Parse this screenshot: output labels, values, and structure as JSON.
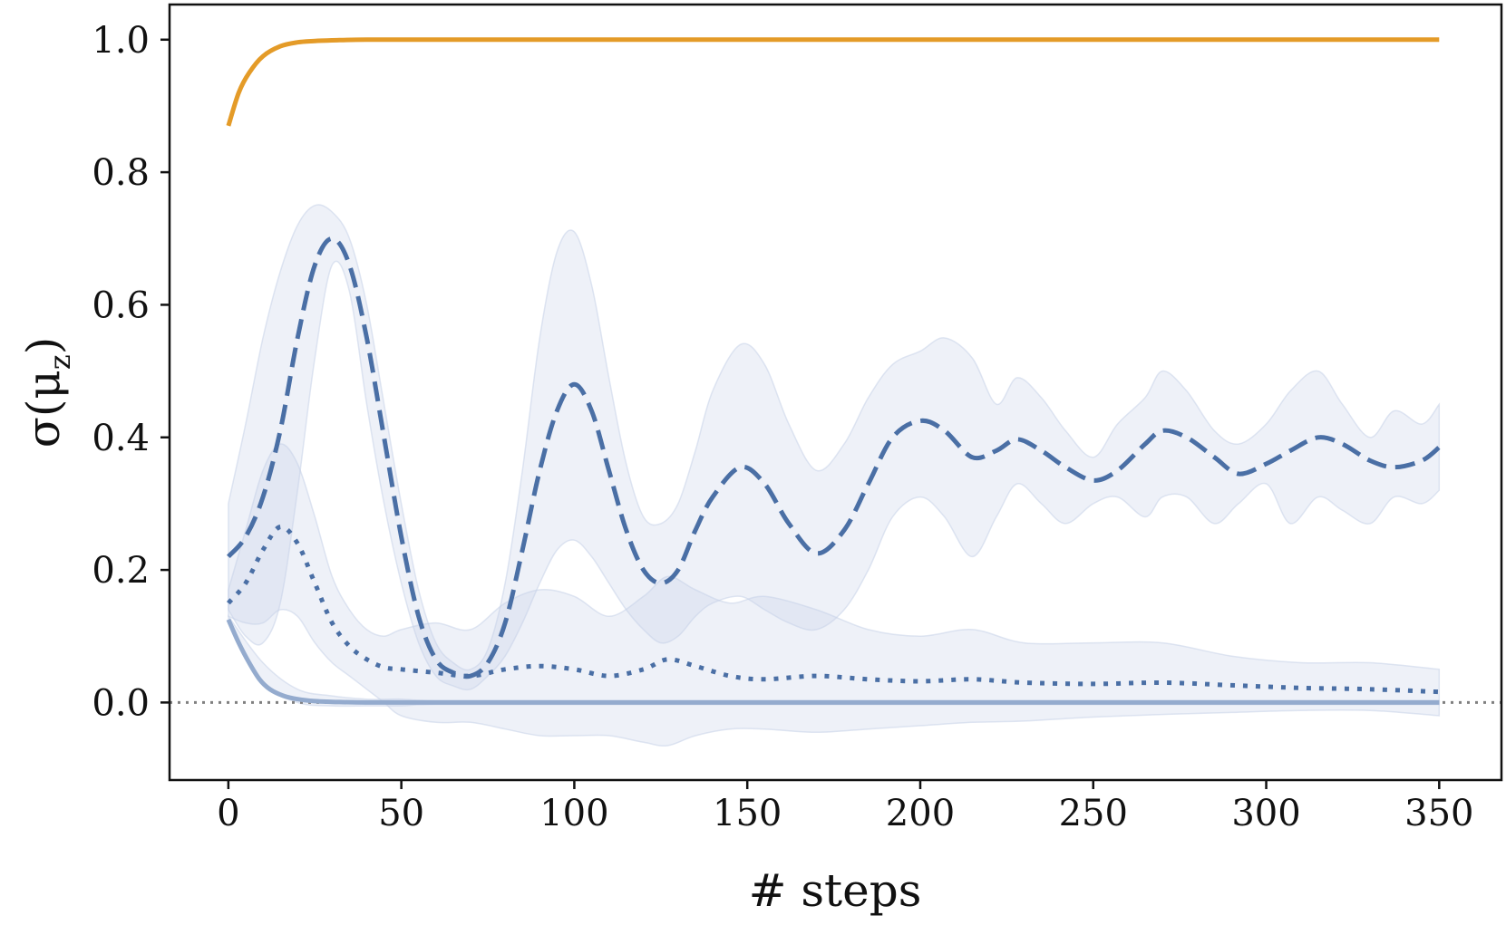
{
  "chart_data": {
    "type": "line",
    "title": "",
    "xlabel": "# steps",
    "ylabel": "σ(μ_z)",
    "ylabel_main": "σ(μ",
    "ylabel_sub": "z",
    "ylabel_close": ")",
    "xlim": [
      -17,
      368
    ],
    "ylim": [
      -0.117,
      1.053
    ],
    "xticks": [
      0,
      50,
      100,
      150,
      200,
      250,
      300,
      350
    ],
    "yticks": [
      0.0,
      0.2,
      0.4,
      0.6,
      0.8,
      1.0
    ],
    "xtick_labels": [
      "0",
      "50",
      "100",
      "150",
      "200",
      "250",
      "300",
      "350"
    ],
    "ytick_labels": [
      "0.0",
      "0.2",
      "0.4",
      "0.6",
      "0.8",
      "1.0"
    ],
    "grid": false,
    "reference_line": {
      "y": 0.0,
      "style": "dotted",
      "color": "#808080"
    },
    "colors": {
      "orange": "#E49B28",
      "blue": "#4A6FA5",
      "blue_light": "#94ABCE",
      "band": "#C6D2E7"
    },
    "series": [
      {
        "style": "solid",
        "color": "#E49B28",
        "x": [
          0,
          3,
          6,
          10,
          15,
          20,
          25,
          30,
          40,
          60,
          100,
          200,
          350
        ],
        "y": [
          0.87,
          0.92,
          0.95,
          0.975,
          0.99,
          0.996,
          0.998,
          0.999,
          1.0,
          1.0,
          1.0,
          1.0,
          1.0
        ]
      },
      {
        "style": "dashed",
        "color": "#4A6FA5",
        "x": [
          0,
          5,
          10,
          15,
          20,
          25,
          30,
          35,
          40,
          45,
          50,
          55,
          60,
          65,
          70,
          75,
          80,
          85,
          90,
          95,
          100,
          105,
          110,
          115,
          120,
          125,
          130,
          135,
          140,
          148,
          155,
          162,
          170,
          178,
          185,
          192,
          200,
          207,
          215,
          222,
          228,
          235,
          242,
          250,
          257,
          265,
          270,
          277,
          285,
          292,
          300,
          307,
          315,
          322,
          330,
          337,
          345,
          350
        ],
        "y": [
          0.22,
          0.25,
          0.31,
          0.41,
          0.55,
          0.66,
          0.7,
          0.66,
          0.55,
          0.4,
          0.25,
          0.13,
          0.065,
          0.045,
          0.04,
          0.06,
          0.12,
          0.23,
          0.35,
          0.44,
          0.48,
          0.44,
          0.35,
          0.26,
          0.2,
          0.18,
          0.2,
          0.26,
          0.31,
          0.355,
          0.33,
          0.27,
          0.225,
          0.26,
          0.33,
          0.4,
          0.425,
          0.41,
          0.37,
          0.38,
          0.397,
          0.38,
          0.355,
          0.335,
          0.35,
          0.39,
          0.41,
          0.4,
          0.37,
          0.345,
          0.36,
          0.38,
          0.4,
          0.39,
          0.365,
          0.355,
          0.365,
          0.385
        ]
      },
      {
        "style": "dotted",
        "color": "#4A6FA5",
        "x": [
          0,
          5,
          10,
          15,
          20,
          25,
          30,
          35,
          40,
          45,
          50,
          60,
          70,
          80,
          90,
          100,
          110,
          120,
          127,
          135,
          145,
          155,
          170,
          185,
          200,
          215,
          230,
          250,
          270,
          290,
          310,
          330,
          350
        ],
        "y": [
          0.15,
          0.18,
          0.23,
          0.265,
          0.24,
          0.18,
          0.12,
          0.085,
          0.065,
          0.053,
          0.05,
          0.045,
          0.04,
          0.05,
          0.055,
          0.05,
          0.04,
          0.05,
          0.065,
          0.055,
          0.04,
          0.035,
          0.04,
          0.035,
          0.032,
          0.035,
          0.03,
          0.028,
          0.03,
          0.026,
          0.022,
          0.02,
          0.016
        ]
      },
      {
        "style": "solid",
        "color": "#94ABCE",
        "x": [
          0,
          3,
          6,
          9,
          12,
          16,
          20,
          25,
          30,
          40,
          60,
          100,
          200,
          350
        ],
        "y": [
          0.125,
          0.09,
          0.06,
          0.035,
          0.02,
          0.01,
          0.005,
          0.002,
          0.001,
          0.0,
          0.0,
          0.0,
          0.0,
          0.0
        ]
      }
    ],
    "bands": [
      {
        "color": "#C6D2E7",
        "x": [
          0,
          5,
          10,
          15,
          20,
          25,
          30,
          35,
          40,
          45,
          50,
          55,
          60,
          65,
          70,
          75,
          80,
          85,
          90,
          95,
          100,
          105,
          110,
          115,
          120,
          125,
          130,
          135,
          140,
          148,
          155,
          162,
          170,
          178,
          185,
          192,
          200,
          207,
          215,
          222,
          228,
          235,
          242,
          250,
          257,
          265,
          270,
          277,
          285,
          292,
          300,
          307,
          315,
          322,
          330,
          337,
          345,
          350
        ],
        "upper": [
          0.3,
          0.42,
          0.55,
          0.65,
          0.72,
          0.75,
          0.74,
          0.7,
          0.6,
          0.45,
          0.3,
          0.17,
          0.09,
          0.06,
          0.05,
          0.08,
          0.18,
          0.35,
          0.55,
          0.68,
          0.71,
          0.63,
          0.49,
          0.36,
          0.28,
          0.27,
          0.3,
          0.38,
          0.47,
          0.54,
          0.51,
          0.42,
          0.35,
          0.39,
          0.46,
          0.51,
          0.53,
          0.55,
          0.52,
          0.45,
          0.49,
          0.46,
          0.41,
          0.37,
          0.42,
          0.46,
          0.5,
          0.47,
          0.41,
          0.39,
          0.42,
          0.47,
          0.5,
          0.45,
          0.4,
          0.44,
          0.42,
          0.45
        ],
        "lower": [
          0.14,
          0.1,
          0.09,
          0.15,
          0.32,
          0.52,
          0.66,
          0.62,
          0.45,
          0.3,
          0.18,
          0.09,
          0.04,
          0.025,
          0.02,
          0.04,
          0.07,
          0.12,
          0.18,
          0.23,
          0.245,
          0.22,
          0.18,
          0.14,
          0.11,
          0.09,
          0.1,
          0.13,
          0.15,
          0.16,
          0.14,
          0.12,
          0.11,
          0.14,
          0.2,
          0.28,
          0.31,
          0.28,
          0.22,
          0.28,
          0.33,
          0.3,
          0.27,
          0.3,
          0.31,
          0.28,
          0.31,
          0.31,
          0.27,
          0.3,
          0.33,
          0.27,
          0.31,
          0.29,
          0.27,
          0.31,
          0.3,
          0.32
        ]
      },
      {
        "color": "#C6D2E7",
        "x": [
          0,
          5,
          10,
          15,
          20,
          25,
          30,
          35,
          40,
          45,
          50,
          60,
          70,
          80,
          90,
          100,
          110,
          120,
          127,
          135,
          145,
          155,
          170,
          185,
          200,
          215,
          230,
          250,
          270,
          290,
          310,
          330,
          350
        ],
        "upper": [
          0.17,
          0.26,
          0.35,
          0.39,
          0.36,
          0.28,
          0.19,
          0.14,
          0.11,
          0.1,
          0.11,
          0.12,
          0.11,
          0.15,
          0.17,
          0.16,
          0.13,
          0.16,
          0.19,
          0.17,
          0.15,
          0.16,
          0.14,
          0.11,
          0.1,
          0.11,
          0.09,
          0.09,
          0.09,
          0.07,
          0.06,
          0.06,
          0.05
        ],
        "lower": [
          0.13,
          0.12,
          0.12,
          0.14,
          0.13,
          0.09,
          0.06,
          0.04,
          0.02,
          0.0,
          -0.02,
          -0.03,
          -0.03,
          -0.04,
          -0.05,
          -0.05,
          -0.05,
          -0.06,
          -0.065,
          -0.05,
          -0.04,
          -0.04,
          -0.045,
          -0.04,
          -0.035,
          -0.03,
          -0.028,
          -0.022,
          -0.018,
          -0.015,
          -0.012,
          -0.012,
          -0.02
        ]
      },
      {
        "color": "#C6D2E7",
        "x": [
          0,
          10,
          20,
          30,
          40,
          50,
          60,
          100,
          150,
          200,
          250,
          300,
          350
        ],
        "upper": [
          0.13,
          0.06,
          0.02,
          0.01,
          0.005,
          0.005,
          0.003,
          0.003,
          0.003,
          0.003,
          0.003,
          0.003,
          0.003
        ],
        "lower": [
          0.12,
          0.03,
          0.0,
          -0.005,
          -0.005,
          -0.005,
          -0.003,
          -0.003,
          -0.003,
          -0.003,
          -0.003,
          -0.003,
          -0.003
        ]
      }
    ]
  }
}
